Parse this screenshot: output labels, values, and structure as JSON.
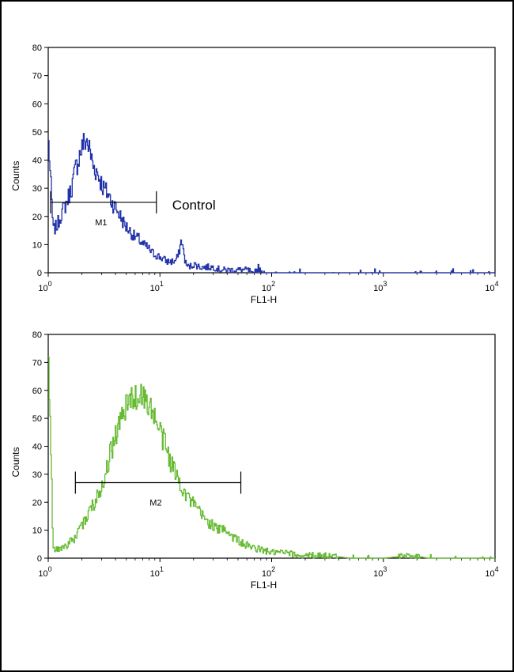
{
  "chart_data": [
    {
      "type": "line",
      "title": "",
      "xlabel": "FL1-H",
      "ylabel": "Counts",
      "xscale": "log",
      "xlim": [
        1,
        10000
      ],
      "ylim": [
        0,
        80
      ],
      "yticks": [
        0,
        10,
        20,
        30,
        40,
        50,
        60,
        70,
        80
      ],
      "xticks": [
        {
          "base": "10",
          "exp": "0"
        },
        {
          "base": "10",
          "exp": "1"
        },
        {
          "base": "10",
          "exp": "2"
        },
        {
          "base": "10",
          "exp": "3"
        },
        {
          "base": "10",
          "exp": "4"
        }
      ],
      "color": "#2233aa",
      "annotation": "Control",
      "marker": {
        "label": "M1",
        "x_start": 1.05,
        "x_end": 9.3,
        "y": 25
      },
      "series": [
        {
          "x": [
            1.0,
            1.1,
            1.2,
            1.3,
            1.45,
            1.6,
            1.75,
            1.9,
            2.05,
            2.2,
            2.35,
            2.5,
            2.7,
            2.9,
            3.1,
            3.4,
            3.7,
            4.0,
            4.4,
            4.8,
            5.3,
            5.8,
            6.4,
            7.0,
            7.7,
            8.5,
            9.5,
            10.5,
            11.5,
            12.5,
            13.5,
            14.5,
            15.5,
            16.2,
            17.0,
            18.0,
            20.0,
            23.0,
            26.0,
            30.0,
            35.0,
            40.0,
            50.0,
            60.0,
            70.0,
            76.0,
            80.0,
            100.0,
            150.0,
            300.0,
            1000.0,
            10000.0
          ],
          "y": [
            47,
            15,
            17,
            21,
            25,
            30,
            37,
            42,
            46,
            47,
            43,
            38,
            36,
            33,
            30,
            28,
            25,
            23,
            20,
            17,
            15,
            13,
            12,
            10,
            9,
            7,
            6,
            5,
            4,
            4,
            4,
            6,
            12,
            7,
            3,
            2,
            3,
            2,
            2,
            2,
            1,
            1,
            1,
            1,
            0,
            2,
            0,
            0,
            0,
            0,
            0,
            0
          ]
        }
      ]
    },
    {
      "type": "line",
      "title": "",
      "xlabel": "FL1-H",
      "ylabel": "Counts",
      "xscale": "log",
      "xlim": [
        1,
        10000
      ],
      "ylim": [
        0,
        80
      ],
      "yticks": [
        0,
        10,
        20,
        30,
        40,
        50,
        60,
        70,
        80
      ],
      "xticks": [
        {
          "base": "10",
          "exp": "0"
        },
        {
          "base": "10",
          "exp": "1"
        },
        {
          "base": "10",
          "exp": "2"
        },
        {
          "base": "10",
          "exp": "3"
        },
        {
          "base": "10",
          "exp": "4"
        }
      ],
      "color": "#66bb33",
      "annotation": "",
      "marker": {
        "label": "M2",
        "x_start": 1.75,
        "x_end": 53.0,
        "y": 27
      },
      "series": [
        {
          "x": [
            1.0,
            1.05,
            1.1,
            1.2,
            1.35,
            1.5,
            1.7,
            1.9,
            2.1,
            2.3,
            2.6,
            2.9,
            3.2,
            3.5,
            3.9,
            4.3,
            4.7,
            5.2,
            5.7,
            6.2,
            6.8,
            7.4,
            8.0,
            8.6,
            9.3,
            10.0,
            11.0,
            12.0,
            13.5,
            15.0,
            17.0,
            19.0,
            22.0,
            25.0,
            29.0,
            33.0,
            38.0,
            43.0,
            48.0,
            55.0,
            65.0,
            80.0,
            100.0,
            130.0,
            170.0,
            230.0,
            300.0,
            500.0,
            1000.0,
            1800.0,
            2500.0,
            10000.0
          ],
          "y": [
            72,
            38,
            3,
            3,
            4,
            5,
            7,
            10,
            13,
            17,
            20,
            25,
            30,
            36,
            43,
            48,
            52,
            56,
            58,
            57,
            59,
            56,
            55,
            52,
            48,
            45,
            41,
            36,
            31,
            27,
            23,
            20,
            17,
            14,
            12,
            10,
            11,
            8,
            7,
            5,
            4,
            3,
            2,
            2,
            1,
            1,
            1,
            0,
            0,
            1,
            0,
            0
          ]
        }
      ]
    }
  ]
}
